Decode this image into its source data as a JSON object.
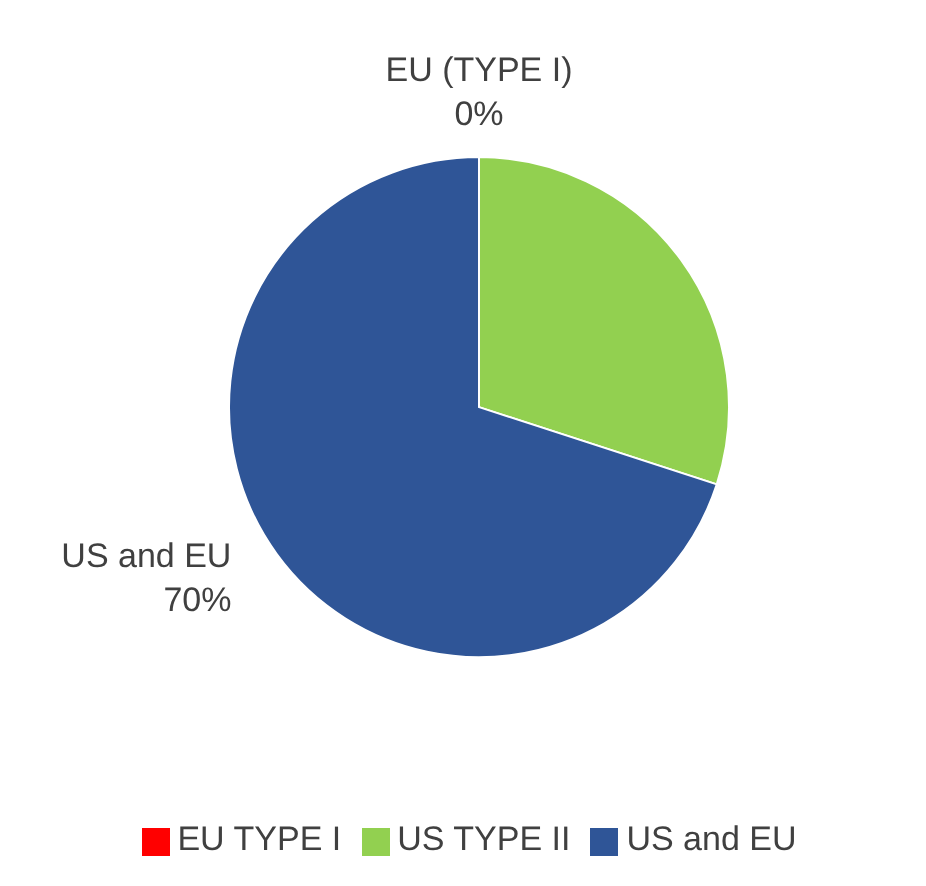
{
  "chart_data": {
    "type": "pie",
    "categories": [
      "EU TYPE I",
      "US TYPE II",
      "US and EU"
    ],
    "values": [
      0,
      30,
      70
    ],
    "colors": [
      "#ff0000",
      "#92d050",
      "#2f5597"
    ],
    "value_labels": [
      "EU (TYPE I)\n0%",
      null,
      "US and EU\n70%"
    ],
    "legend": "bottom"
  }
}
